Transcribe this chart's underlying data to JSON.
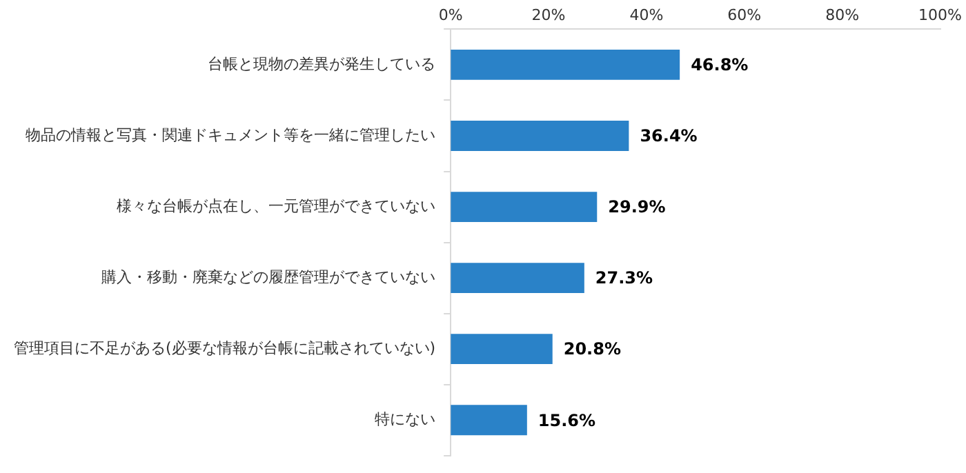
{
  "chart_data": {
    "type": "bar",
    "orientation": "horizontal",
    "categories": [
      "台帳と現物の差異が発生している",
      "物品の情報と写真・関連ドキュメント等を一緒に管理したい",
      "様々な台帳が点在し、一元管理ができていない",
      "購入・移動・廃棄などの履歴管理ができていない",
      "管理項目に不足がある(必要な情報が台帳に記載されていない)",
      "特にない"
    ],
    "values": [
      46.8,
      36.4,
      29.9,
      27.3,
      20.8,
      15.6
    ],
    "value_labels": [
      "46.8%",
      "36.4%",
      "29.9%",
      "27.3%",
      "20.8%",
      "15.6%"
    ],
    "color": "#2a82c8",
    "xlim": [
      0,
      100
    ],
    "xticks": [
      {
        "value": 0,
        "label": "0%"
      },
      {
        "value": 20,
        "label": "20%"
      },
      {
        "value": 40,
        "label": "40%"
      },
      {
        "value": 60,
        "label": "60%"
      },
      {
        "value": 80,
        "label": "80%"
      },
      {
        "value": 100,
        "label": "100%"
      }
    ],
    "grid": false,
    "legend": false
  }
}
